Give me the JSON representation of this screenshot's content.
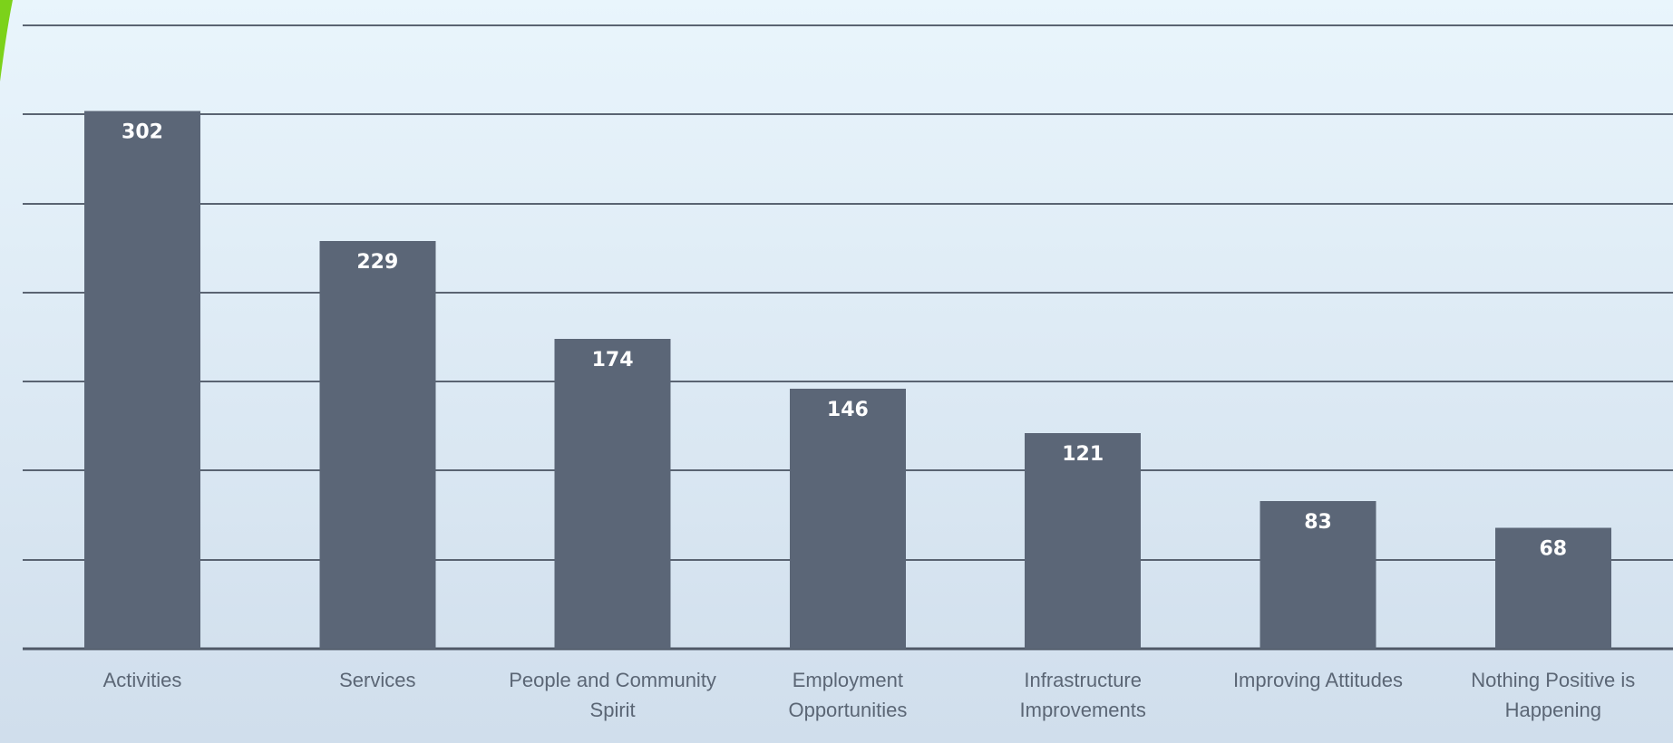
{
  "chart_data": {
    "type": "bar",
    "categories": [
      "Activities",
      "Services",
      "People and Community Spirit",
      "Employment Opportunities",
      "Infrastructure Improvements",
      "Improving Attitudes",
      "Nothing Positive is Happening"
    ],
    "category_lines": [
      [
        "Activities"
      ],
      [
        "Services"
      ],
      [
        "People and Community",
        "Spirit"
      ],
      [
        "Employment",
        "Opportunities"
      ],
      [
        "Infrastructure",
        "Improvements"
      ],
      [
        "Improving Attitudes"
      ],
      [
        "Nothing Positive is",
        "Happening"
      ]
    ],
    "values": [
      302,
      229,
      174,
      146,
      121,
      83,
      68
    ],
    "value_labels": [
      "302",
      "229",
      "174",
      "146",
      "121",
      "83",
      "68"
    ],
    "title": "",
    "xlabel": "",
    "ylabel": "",
    "ylim": [
      0,
      350
    ],
    "gridlines": [
      0,
      50,
      100,
      150,
      200,
      250,
      300,
      350
    ],
    "grid": true,
    "legend": "none",
    "colors": {
      "bar": "#5b6677",
      "background_top": "#e8f4fb",
      "background_bottom": "#d2e0ee",
      "grid": "#5a6472",
      "value_text": "#ffffff",
      "category_text": "#5b6675",
      "corner_accent": "#7cd21a"
    }
  }
}
